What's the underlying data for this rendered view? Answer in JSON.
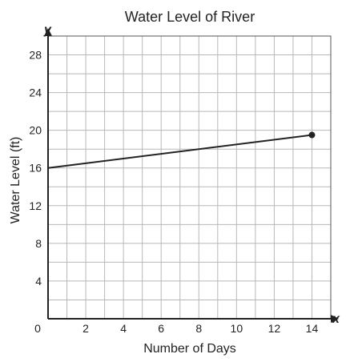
{
  "chart_data": {
    "type": "line",
    "title": "Water Level of River",
    "xlabel": "Number of Days",
    "ylabel": "Water Level (ft)",
    "x_axis_letter": "x",
    "y_axis_letter": "y",
    "xlim": [
      0,
      15
    ],
    "ylim": [
      0,
      30
    ],
    "x_grid_step": 1,
    "y_grid_step": 2,
    "x_ticks": [
      0,
      2,
      4,
      6,
      8,
      10,
      12,
      14
    ],
    "y_ticks": [
      4,
      8,
      12,
      16,
      20,
      24,
      28
    ],
    "grid": true,
    "series": [
      {
        "points": [
          {
            "x": 0,
            "y": 16
          },
          {
            "x": 14,
            "y": 19.5
          }
        ],
        "endpoint_marker": "closed-circle",
        "color": "#222222"
      }
    ]
  }
}
